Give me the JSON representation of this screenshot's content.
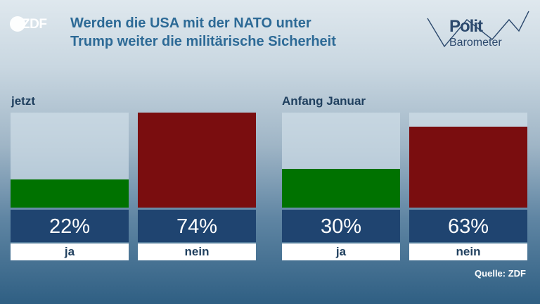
{
  "brand": {
    "logo_text": "ZDF"
  },
  "header": {
    "title_line1": "Werden die USA mit der NATO unter",
    "title_line2": "Trump weiter die militärische Sicherheit"
  },
  "politbarometer": {
    "line1": "Polit",
    "line2": "Barometer"
  },
  "colors": {
    "ja": "#007200",
    "nein": "#7a0d0f",
    "value_box": "#1f4470",
    "title": "#2d6a96"
  },
  "chart_data": [
    {
      "type": "bar",
      "title": "jetzt",
      "categories": [
        "ja",
        "nein"
      ],
      "values": [
        22,
        74
      ],
      "value_labels": [
        "22%",
        "74%"
      ],
      "ylim": [
        0,
        74
      ]
    },
    {
      "type": "bar",
      "title": "Anfang Januar",
      "categories": [
        "ja",
        "nein"
      ],
      "values": [
        30,
        63
      ],
      "value_labels": [
        "30%",
        "63%"
      ],
      "ylim": [
        0,
        74
      ]
    }
  ],
  "footer": {
    "source": "Quelle: ZDF"
  }
}
